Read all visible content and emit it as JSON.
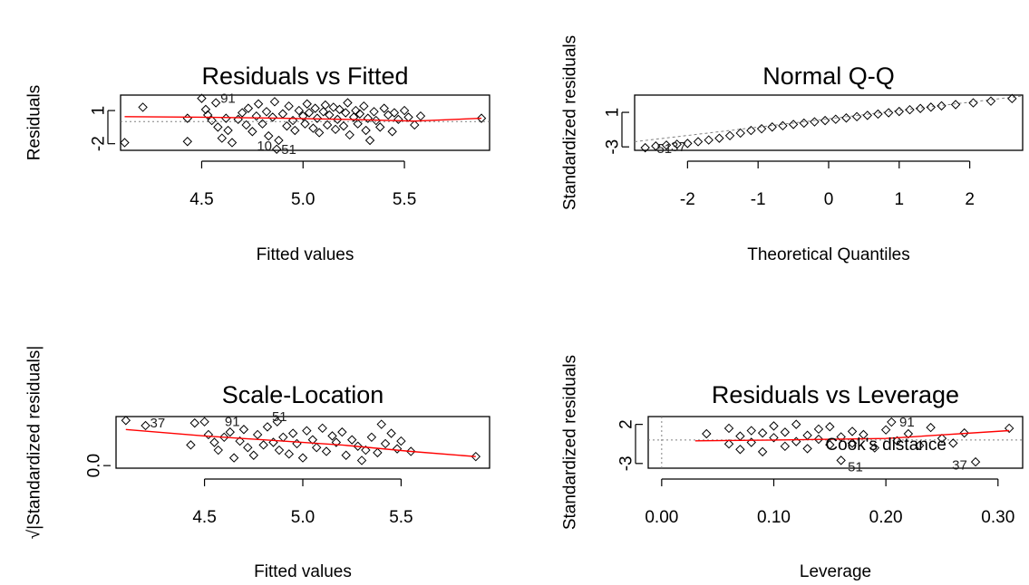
{
  "colors": {
    "smooth": "#ff0000",
    "reference": "#808080",
    "points": "#000000"
  },
  "chart_data": [
    {
      "type": "scatter",
      "title": "Residuals vs Fitted",
      "xlabel": "Fitted values",
      "ylabel": "Residuals",
      "xlim": [
        4.1,
        5.92
      ],
      "ylim": [
        -2.6,
        2.4
      ],
      "xticks": [
        4.5,
        5.0,
        5.5
      ],
      "xtick_labels": [
        "4.5",
        "5.0",
        "5.5"
      ],
      "yticks": [
        1,
        -2
      ],
      "ytick_labels": [
        "1",
        "-2"
      ],
      "hline": 0,
      "points": [
        [
          4.12,
          -1.9
        ],
        [
          4.21,
          1.3
        ],
        [
          4.43,
          0.3
        ],
        [
          4.43,
          -1.8
        ],
        [
          4.5,
          2.1
        ],
        [
          4.52,
          1.1
        ],
        [
          4.53,
          0.6
        ],
        [
          4.55,
          0.1
        ],
        [
          4.57,
          1.7
        ],
        [
          4.58,
          -0.5
        ],
        [
          4.6,
          -1.5
        ],
        [
          4.62,
          0.3
        ],
        [
          4.63,
          -0.8
        ],
        [
          4.65,
          -1.9
        ],
        [
          4.68,
          0.2
        ],
        [
          4.7,
          0.8
        ],
        [
          4.72,
          -0.3
        ],
        [
          4.73,
          1.2
        ],
        [
          4.75,
          -0.9
        ],
        [
          4.77,
          0.5
        ],
        [
          4.78,
          1.6
        ],
        [
          4.8,
          -0.2
        ],
        [
          4.82,
          0.9
        ],
        [
          4.83,
          -1.3
        ],
        [
          4.85,
          0.4
        ],
        [
          4.86,
          1.8
        ],
        [
          4.87,
          -2.5
        ],
        [
          4.88,
          -1.7
        ],
        [
          4.9,
          0.7
        ],
        [
          4.92,
          -0.4
        ],
        [
          4.93,
          1.4
        ],
        [
          4.95,
          0.1
        ],
        [
          4.96,
          -0.8
        ],
        [
          4.98,
          1.0
        ],
        [
          5.0,
          0.5
        ],
        [
          5.01,
          -0.2
        ],
        [
          5.02,
          1.6
        ],
        [
          5.03,
          0.8
        ],
        [
          5.05,
          -0.6
        ],
        [
          5.06,
          1.2
        ],
        [
          5.07,
          0.3
        ],
        [
          5.08,
          -1.0
        ],
        [
          5.1,
          0.9
        ],
        [
          5.11,
          1.5
        ],
        [
          5.12,
          -0.3
        ],
        [
          5.13,
          0.6
        ],
        [
          5.15,
          1.3
        ],
        [
          5.16,
          -0.7
        ],
        [
          5.17,
          0.2
        ],
        [
          5.18,
          1.1
        ],
        [
          5.2,
          -0.4
        ],
        [
          5.21,
          0.8
        ],
        [
          5.22,
          1.7
        ],
        [
          5.23,
          -1.2
        ],
        [
          5.25,
          0.4
        ],
        [
          5.26,
          1.0
        ],
        [
          5.27,
          -0.2
        ],
        [
          5.28,
          0.7
        ],
        [
          5.3,
          1.4
        ],
        [
          5.31,
          -0.8
        ],
        [
          5.32,
          0.3
        ],
        [
          5.33,
          -1.7
        ],
        [
          5.35,
          0.9
        ],
        [
          5.36,
          0.1
        ],
        [
          5.38,
          -0.5
        ],
        [
          5.4,
          1.2
        ],
        [
          5.42,
          0.6
        ],
        [
          5.44,
          -0.9
        ],
        [
          5.45,
          0.8
        ],
        [
          5.47,
          0.2
        ],
        [
          5.5,
          1.0
        ],
        [
          5.52,
          0.4
        ],
        [
          5.55,
          -0.3
        ],
        [
          5.58,
          0.5
        ],
        [
          5.88,
          0.3
        ]
      ],
      "smooth": [
        [
          4.12,
          0.45
        ],
        [
          4.5,
          0.4
        ],
        [
          4.9,
          0.3
        ],
        [
          5.2,
          0.2
        ],
        [
          5.55,
          0.05
        ],
        [
          5.88,
          0.3
        ]
      ],
      "labels": [
        {
          "text": "91",
          "x": 4.57,
          "y": 2.1
        },
        {
          "text": "10",
          "x": 4.75,
          "y": -2.2
        },
        {
          "text": "51",
          "x": 4.87,
          "y": -2.5
        }
      ]
    },
    {
      "type": "scatter",
      "title": "Normal Q-Q",
      "xlabel": "Theoretical Quantiles",
      "ylabel": "Standardized residuals",
      "xlim": [
        -2.75,
        2.75
      ],
      "ylim": [
        -3.4,
        3.0
      ],
      "xticks": [
        -2,
        -1,
        0,
        1,
        2
      ],
      "xtick_labels": [
        "-2",
        "-1",
        "0",
        "1",
        "2"
      ],
      "yticks": [
        1,
        -3
      ],
      "ytick_labels": [
        "1",
        "-3"
      ],
      "refline": [
        [
          -2.75,
          -2.4
        ],
        [
          2.75,
          2.9
        ]
      ],
      "points": [
        [
          -2.6,
          -3.1
        ],
        [
          -2.45,
          -2.9
        ],
        [
          -2.3,
          -2.8
        ],
        [
          -2.15,
          -2.7
        ],
        [
          -2.0,
          -2.6
        ],
        [
          -1.85,
          -2.4
        ],
        [
          -1.7,
          -2.2
        ],
        [
          -1.55,
          -2.0
        ],
        [
          -1.4,
          -1.7
        ],
        [
          -1.25,
          -1.4
        ],
        [
          -1.1,
          -1.1
        ],
        [
          -0.95,
          -0.9
        ],
        [
          -0.8,
          -0.7
        ],
        [
          -0.65,
          -0.55
        ],
        [
          -0.5,
          -0.4
        ],
        [
          -0.35,
          -0.25
        ],
        [
          -0.2,
          -0.1
        ],
        [
          -0.05,
          0.05
        ],
        [
          0.1,
          0.2
        ],
        [
          0.25,
          0.35
        ],
        [
          0.4,
          0.5
        ],
        [
          0.55,
          0.65
        ],
        [
          0.7,
          0.8
        ],
        [
          0.85,
          0.95
        ],
        [
          1.0,
          1.1
        ],
        [
          1.15,
          1.3
        ],
        [
          1.3,
          1.45
        ],
        [
          1.45,
          1.6
        ],
        [
          1.6,
          1.75
        ],
        [
          1.8,
          1.9
        ],
        [
          2.05,
          2.1
        ],
        [
          2.3,
          2.3
        ],
        [
          2.6,
          2.6
        ]
      ],
      "labels": [
        {
          "text": "51",
          "x": -2.5,
          "y": -3.2
        },
        {
          "text": "37",
          "x": -2.3,
          "y": -3.0
        }
      ]
    },
    {
      "type": "scatter",
      "title": "Scale-Location",
      "xlabel": "Fitted values",
      "ylabel": "√|Standardized residuals|",
      "xlim": [
        4.05,
        5.95
      ],
      "ylim": [
        -0.1,
        1.9
      ],
      "xticks": [
        4.5,
        5.0,
        5.5
      ],
      "xtick_labels": [
        "4.5",
        "5.0",
        "5.5"
      ],
      "yticks": [
        0.0
      ],
      "ytick_labels": [
        "0.0"
      ],
      "points": [
        [
          4.1,
          1.75
        ],
        [
          4.2,
          1.55
        ],
        [
          4.43,
          0.8
        ],
        [
          4.45,
          1.65
        ],
        [
          4.5,
          1.7
        ],
        [
          4.52,
          1.2
        ],
        [
          4.55,
          0.9
        ],
        [
          4.57,
          0.6
        ],
        [
          4.6,
          1.1
        ],
        [
          4.63,
          1.3
        ],
        [
          4.65,
          0.3
        ],
        [
          4.68,
          0.95
        ],
        [
          4.7,
          1.4
        ],
        [
          4.72,
          0.7
        ],
        [
          4.75,
          0.4
        ],
        [
          4.77,
          1.2
        ],
        [
          4.8,
          0.8
        ],
        [
          4.82,
          1.5
        ],
        [
          4.85,
          0.9
        ],
        [
          4.87,
          1.7
        ],
        [
          4.88,
          0.6
        ],
        [
          4.9,
          1.1
        ],
        [
          4.93,
          0.45
        ],
        [
          4.95,
          1.25
        ],
        [
          4.97,
          0.85
        ],
        [
          5.0,
          0.3
        ],
        [
          5.02,
          1.35
        ],
        [
          5.05,
          1.0
        ],
        [
          5.07,
          0.7
        ],
        [
          5.1,
          1.45
        ],
        [
          5.12,
          0.55
        ],
        [
          5.15,
          1.15
        ],
        [
          5.17,
          0.9
        ],
        [
          5.2,
          1.3
        ],
        [
          5.22,
          0.4
        ],
        [
          5.25,
          1.0
        ],
        [
          5.28,
          0.75
        ],
        [
          5.3,
          0.2
        ],
        [
          5.32,
          0.6
        ],
        [
          5.35,
          1.1
        ],
        [
          5.38,
          0.5
        ],
        [
          5.4,
          1.6
        ],
        [
          5.42,
          0.85
        ],
        [
          5.45,
          1.25
        ],
        [
          5.48,
          0.65
        ],
        [
          5.5,
          0.95
        ],
        [
          5.55,
          0.55
        ],
        [
          5.88,
          0.35
        ]
      ],
      "smooth": [
        [
          4.1,
          1.4
        ],
        [
          4.5,
          1.15
        ],
        [
          4.9,
          0.95
        ],
        [
          5.2,
          0.8
        ],
        [
          5.55,
          0.55
        ],
        [
          5.88,
          0.35
        ]
      ],
      "labels": [
        {
          "text": "37",
          "x": 4.2,
          "y": 1.65
        },
        {
          "text": "91",
          "x": 4.58,
          "y": 1.7
        },
        {
          "text": "51",
          "x": 4.82,
          "y": 1.9
        }
      ]
    },
    {
      "type": "scatter",
      "title": "Residuals vs Leverage",
      "xlabel": "Leverage",
      "ylabel": "Standardized residuals",
      "xlim": [
        -0.012,
        0.322
      ],
      "ylim": [
        -3.6,
        3.0
      ],
      "xticks": [
        0.0,
        0.1,
        0.2,
        0.3
      ],
      "xtick_labels": [
        "0.00",
        "0.10",
        "0.20",
        "0.30"
      ],
      "yticks": [
        2,
        -3
      ],
      "ytick_labels": [
        "2",
        "-3"
      ],
      "hline": 0,
      "vline": 0,
      "points": [
        [
          0.04,
          0.8
        ],
        [
          0.06,
          -0.5
        ],
        [
          0.06,
          1.5
        ],
        [
          0.07,
          -1.2
        ],
        [
          0.07,
          0.5
        ],
        [
          0.08,
          1.2
        ],
        [
          0.08,
          -0.3
        ],
        [
          0.09,
          0.9
        ],
        [
          0.09,
          -1.5
        ],
        [
          0.1,
          0.3
        ],
        [
          0.1,
          1.8
        ],
        [
          0.11,
          -0.8
        ],
        [
          0.11,
          1.0
        ],
        [
          0.12,
          -0.2
        ],
        [
          0.12,
          2.0
        ],
        [
          0.13,
          0.6
        ],
        [
          0.13,
          -1.1
        ],
        [
          0.14,
          1.4
        ],
        [
          0.14,
          0.1
        ],
        [
          0.15,
          -0.6
        ],
        [
          0.15,
          1.7
        ],
        [
          0.16,
          0.4
        ],
        [
          0.16,
          -2.6
        ],
        [
          0.17,
          1.1
        ],
        [
          0.17,
          -0.4
        ],
        [
          0.18,
          0.7
        ],
        [
          0.19,
          -1.0
        ],
        [
          0.2,
          1.3
        ],
        [
          0.205,
          2.3
        ],
        [
          0.21,
          -0.1
        ],
        [
          0.22,
          0.8
        ],
        [
          0.23,
          -0.7
        ],
        [
          0.24,
          1.6
        ],
        [
          0.25,
          0.2
        ],
        [
          0.26,
          -0.4
        ],
        [
          0.27,
          0.9
        ],
        [
          0.28,
          -2.8
        ],
        [
          0.31,
          1.5
        ]
      ],
      "smooth": [
        [
          0.03,
          -0.1
        ],
        [
          0.1,
          0.0
        ],
        [
          0.2,
          0.2
        ],
        [
          0.31,
          1.2
        ]
      ],
      "labels": [
        {
          "text": "91",
          "x": 0.208,
          "y": 2.3
        },
        {
          "text": "51",
          "x": 0.162,
          "y": -3.4
        },
        {
          "text": "37",
          "x": 0.255,
          "y": -3.2
        }
      ],
      "annotation": {
        "text": "Cook's distance",
        "x": 0.2,
        "y": -0.6
      }
    }
  ]
}
